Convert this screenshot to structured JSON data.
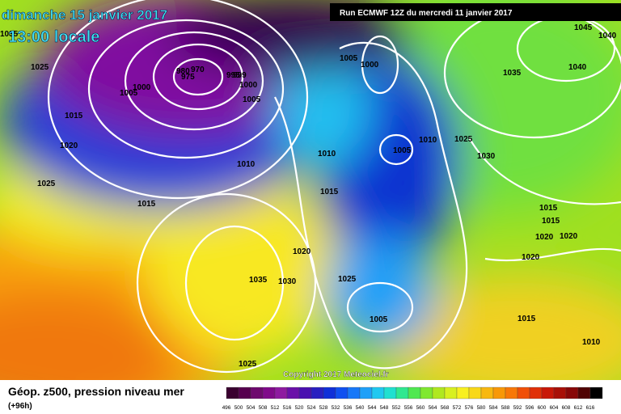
{
  "header": {
    "date": "dimanche 15 janvier 2017",
    "time": "13:00 locale",
    "run": "Run ECMWF 12Z du mercredi 11 janvier 2017"
  },
  "footer": {
    "title": "Géop. z500, pression niveau mer",
    "lead": "(+96h)",
    "copyright": "Copyright 2017 Meteociel.fr"
  },
  "scale": {
    "labels": [
      "496",
      "500",
      "504",
      "508",
      "512",
      "516",
      "520",
      "524",
      "528",
      "532",
      "536",
      "540",
      "544",
      "548",
      "552",
      "556",
      "560",
      "564",
      "568",
      "572",
      "576",
      "580",
      "584",
      "588",
      "592",
      "596",
      "600",
      "604",
      "608",
      "612",
      "616"
    ],
    "colors": [
      "#3a0030",
      "#56004e",
      "#6e0a6e",
      "#800a8a",
      "#8e1aa0",
      "#6a10a8",
      "#4a10b0",
      "#2a20c0",
      "#1030d8",
      "#1050f0",
      "#1878f8",
      "#20a0f8",
      "#20c8f0",
      "#20e0d0",
      "#30e890",
      "#50e850",
      "#80e830",
      "#b0e820",
      "#d8f020",
      "#f8f020",
      "#f8d818",
      "#f8b810",
      "#f89808",
      "#f87808",
      "#f05008",
      "#e03008",
      "#c81808",
      "#a81008",
      "#880808",
      "#500404",
      "#000000"
    ]
  },
  "isobars": [
    "1035",
    "1025",
    "1005",
    "1000",
    "980",
    "970",
    "975",
    "995",
    "999",
    "1000",
    "1005",
    "1015",
    "1020",
    "1025",
    "1010",
    "1015",
    "1005",
    "1000",
    "1010",
    "1005",
    "1015",
    "1010",
    "1025",
    "1030",
    "1045",
    "1040",
    "1035",
    "1040",
    "1015",
    "1015",
    "1020",
    "1020",
    "1020",
    "1020",
    "1035",
    "1030",
    "1025",
    "1005",
    "1015",
    "1010",
    "1025"
  ]
}
